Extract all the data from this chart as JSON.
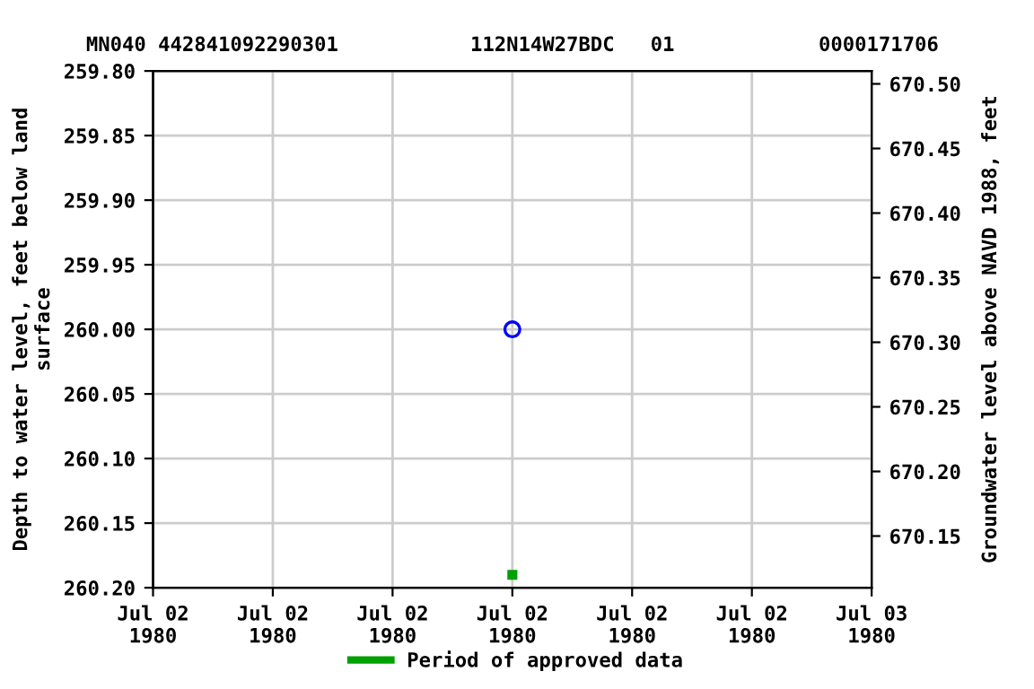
{
  "chart_data": {
    "type": "scatter",
    "title": "MN040 442841092290301           112N14W27BDC   01            0000171706",
    "ylabel": "Depth to water level, feet below land\nsurface",
    "y2label": "Groundwater level above NAVD 1988, feet",
    "xlim": [
      "1980-07-02T00:00",
      "1980-07-03T00:00"
    ],
    "xticks": [
      {
        "value": "1980-07-02T00:00",
        "label": "Jul 02\n1980"
      },
      {
        "value": "1980-07-02T04:00",
        "label": "Jul 02\n1980"
      },
      {
        "value": "1980-07-02T08:00",
        "label": "Jul 02\n1980"
      },
      {
        "value": "1980-07-02T12:00",
        "label": "Jul 02\n1980"
      },
      {
        "value": "1980-07-02T16:00",
        "label": "Jul 02\n1980"
      },
      {
        "value": "1980-07-02T20:00",
        "label": "Jul 02\n1980"
      },
      {
        "value": "1980-07-03T00:00",
        "label": "Jul 03\n1980"
      }
    ],
    "ylim": [
      260.2,
      259.8
    ],
    "yticks": [
      {
        "value": 259.8,
        "label": "259.80"
      },
      {
        "value": 259.85,
        "label": "259.85"
      },
      {
        "value": 259.9,
        "label": "259.90"
      },
      {
        "value": 259.95,
        "label": "259.95"
      },
      {
        "value": 260.0,
        "label": "260.00"
      },
      {
        "value": 260.05,
        "label": "260.05"
      },
      {
        "value": 260.1,
        "label": "260.10"
      },
      {
        "value": 260.15,
        "label": "260.15"
      },
      {
        "value": 260.2,
        "label": "260.20"
      }
    ],
    "y2lim": [
      670.11,
      670.51
    ],
    "y2ticks": [
      {
        "value": 670.15,
        "label": "670.15"
      },
      {
        "value": 670.2,
        "label": "670.20"
      },
      {
        "value": 670.25,
        "label": "670.25"
      },
      {
        "value": 670.3,
        "label": "670.30"
      },
      {
        "value": 670.35,
        "label": "670.35"
      },
      {
        "value": 670.4,
        "label": "670.40"
      },
      {
        "value": 670.45,
        "label": "670.45"
      },
      {
        "value": 670.5,
        "label": "670.50"
      }
    ],
    "grid": true,
    "legend": "bottom",
    "series": [
      {
        "color": "#0000ff",
        "marker": "circle",
        "x": [
          "1980-07-02T12:00"
        ],
        "values": [
          260.0
        ]
      },
      {
        "name": "Period of approved data",
        "color": "#00a000",
        "marker": "square",
        "x": [
          "1980-07-02T12:00"
        ],
        "values": [
          260.19
        ]
      }
    ]
  }
}
